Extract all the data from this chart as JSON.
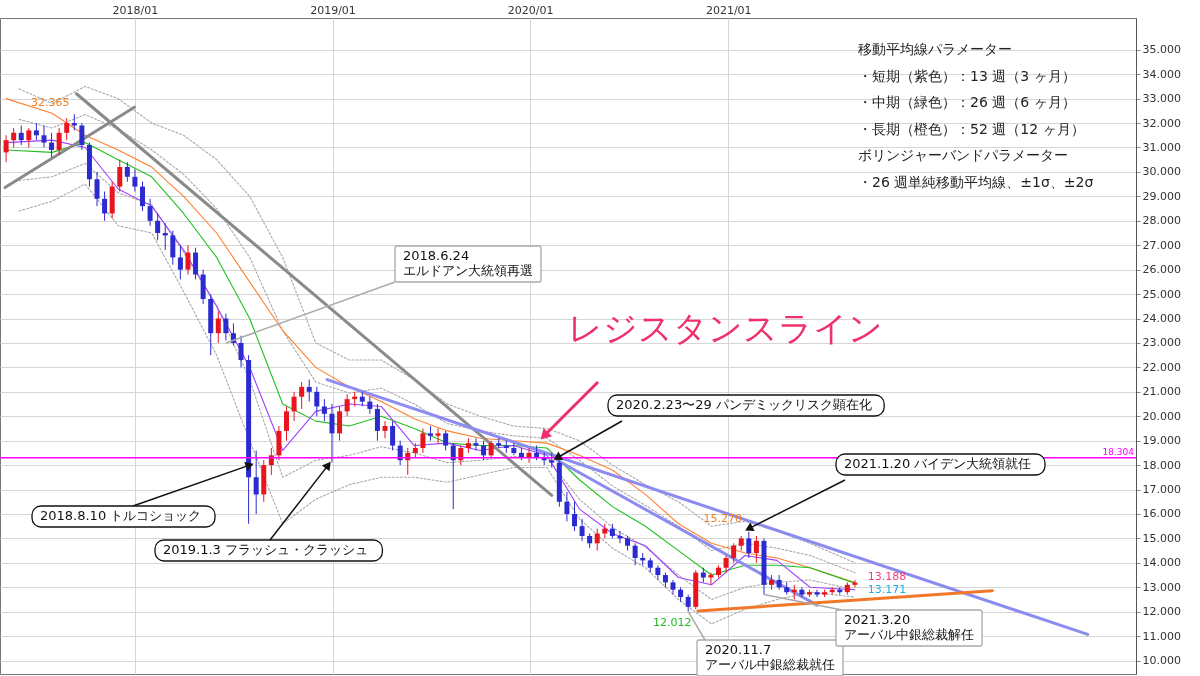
{
  "chart_data": {
    "type": "candlestick",
    "xlim": [
      "2017-05-06",
      "2023-01-15"
    ],
    "ylim": [
      9.45,
      36.3
    ],
    "xticks": [
      {
        "value": "2018-01-01",
        "label": "2018/01"
      },
      {
        "value": "2019-01-01",
        "label": "2019/01"
      },
      {
        "value": "2020-01-01",
        "label": "2020/01"
      },
      {
        "value": "2021-01-01",
        "label": "2021/01"
      }
    ],
    "yticks": [
      {
        "value": 10,
        "label": "10.000"
      },
      {
        "value": 11,
        "label": "11.000"
      },
      {
        "value": 12,
        "label": "12.000"
      },
      {
        "value": 13,
        "label": "13.000"
      },
      {
        "value": 14,
        "label": "14.000"
      },
      {
        "value": 15,
        "label": "15.000"
      },
      {
        "value": 16,
        "label": "16.000"
      },
      {
        "value": 17,
        "label": "17.000"
      },
      {
        "value": 18,
        "label": "18.000"
      },
      {
        "value": 19,
        "label": "19.000"
      },
      {
        "value": 20,
        "label": "20.000"
      },
      {
        "value": 21,
        "label": "21.000"
      },
      {
        "value": 22,
        "label": "22.000"
      },
      {
        "value": 23,
        "label": "23.000"
      },
      {
        "value": 24,
        "label": "24.000"
      },
      {
        "value": 25,
        "label": "25.000"
      },
      {
        "value": 26,
        "label": "26.000"
      },
      {
        "value": 27,
        "label": "27.000"
      },
      {
        "value": 28,
        "label": "28.000"
      },
      {
        "value": 29,
        "label": "29.000"
      },
      {
        "value": 30,
        "label": "30.000"
      },
      {
        "value": 31,
        "label": "31.000"
      },
      {
        "value": 32,
        "label": "32.000"
      },
      {
        "value": 33,
        "label": "33.000"
      },
      {
        "value": 34,
        "label": "34.000"
      },
      {
        "value": 35,
        "label": "35.000"
      }
    ],
    "grid": true,
    "series": [
      {
        "type": "line",
        "color": "#a9a9a9",
        "line_style": "dotted",
        "x": [
          "2017-06-01",
          "2017-08-01",
          "2017-10-01",
          "2017-12-01",
          "2018-02-01",
          "2018-04-01",
          "2018-06-01",
          "2018-08-01",
          "2018-10-01",
          "2018-12-01",
          "2019-02-01",
          "2019-04-01",
          "2019-06-01",
          "2019-08-01",
          "2019-10-01",
          "2019-12-01",
          "2020-02-01",
          "2020-04-01",
          "2020-06-01",
          "2020-08-01",
          "2020-10-01",
          "2020-12-01",
          "2021-02-01",
          "2021-04-01",
          "2021-06-01",
          "2021-08-23"
        ],
        "values": [
          33.4,
          32.8,
          33.5,
          33.0,
          32.0,
          31.5,
          30.5,
          29.0,
          26.5,
          23.0,
          22.3,
          22.3,
          21.5,
          20.5,
          20.0,
          19.6,
          19.5,
          19.0,
          18.0,
          17.2,
          16.5,
          15.5,
          15.7,
          15.3,
          14.8,
          14.0
        ]
      },
      {
        "type": "line",
        "color": "#a9a9a9",
        "line_style": "dotted",
        "x": [
          "2017-06-01",
          "2017-08-01",
          "2017-10-01",
          "2017-12-01",
          "2018-02-01",
          "2018-04-01",
          "2018-06-01",
          "2018-08-01",
          "2018-10-01",
          "2018-12-01",
          "2019-02-01",
          "2019-04-01",
          "2019-06-01",
          "2019-08-01",
          "2019-10-01",
          "2019-12-01",
          "2020-02-01",
          "2020-04-01",
          "2020-06-01",
          "2020-08-01",
          "2020-10-01",
          "2020-12-01",
          "2021-02-01",
          "2021-04-01",
          "2021-06-01",
          "2021-08-23"
        ],
        "values": [
          32.15,
          31.8,
          32.35,
          31.75,
          30.9,
          29.9,
          28.5,
          26.5,
          23.5,
          21.4,
          20.95,
          21.15,
          20.5,
          19.7,
          19.4,
          19.2,
          19.1,
          18.2,
          17.15,
          16.35,
          15.5,
          14.5,
          14.8,
          14.6,
          14.3,
          13.6
        ]
      },
      {
        "type": "line",
        "color": "#a9a9a9",
        "line_style": "dotted",
        "x": [
          "2017-06-01",
          "2017-08-01",
          "2017-10-01",
          "2017-12-01",
          "2018-02-01",
          "2018-04-01",
          "2018-06-01",
          "2018-08-01",
          "2018-10-01",
          "2018-12-01",
          "2019-02-01",
          "2019-04-01",
          "2019-06-01",
          "2019-08-01",
          "2019-10-01",
          "2019-12-01",
          "2020-02-01",
          "2020-04-01",
          "2020-06-01",
          "2020-08-01",
          "2020-10-01",
          "2020-12-01",
          "2021-02-01",
          "2021-04-01",
          "2021-06-01",
          "2021-08-23"
        ],
        "values": [
          29.65,
          29.8,
          30.35,
          29.15,
          28.65,
          26.7,
          24.5,
          21.5,
          17.5,
          18.2,
          18.4,
          18.75,
          18.5,
          18.1,
          18.2,
          18.35,
          18.3,
          16.6,
          15.45,
          14.65,
          13.5,
          12.5,
          13.0,
          13.2,
          13.3,
          12.9
        ]
      },
      {
        "type": "line",
        "color": "#a9a9a9",
        "line_style": "dotted",
        "x": [
          "2017-06-01",
          "2017-08-01",
          "2017-10-01",
          "2017-12-01",
          "2018-02-01",
          "2018-04-01",
          "2018-06-01",
          "2018-08-01",
          "2018-10-01",
          "2018-12-01",
          "2019-02-01",
          "2019-04-01",
          "2019-06-01",
          "2019-08-01",
          "2019-10-01",
          "2019-12-01",
          "2020-02-01",
          "2020-04-01",
          "2020-06-01",
          "2020-08-01",
          "2020-10-01",
          "2020-12-01",
          "2021-02-01",
          "2021-04-01",
          "2021-06-01",
          "2021-08-23"
        ],
        "values": [
          28.4,
          28.8,
          29.5,
          27.8,
          27.5,
          25.1,
          22.5,
          19.0,
          15.6,
          16.6,
          17.2,
          17.5,
          17.5,
          17.3,
          17.6,
          17.9,
          17.9,
          15.8,
          14.6,
          13.8,
          12.5,
          11.5,
          12.1,
          12.5,
          12.8,
          12.6
        ]
      },
      {
        "type": "line",
        "color": "#ff8030",
        "line_style": "solid",
        "x": [
          "2017-05-08",
          "2017-08-01",
          "2017-10-01",
          "2017-12-01",
          "2018-02-01",
          "2018-04-01",
          "2018-06-01",
          "2018-08-01",
          "2018-10-01",
          "2018-12-01",
          "2019-02-01",
          "2019-04-01",
          "2019-06-01",
          "2019-08-01",
          "2019-10-01",
          "2019-12-01",
          "2020-02-01",
          "2020-04-01",
          "2020-06-01",
          "2020-08-01",
          "2020-10-01",
          "2020-12-01",
          "2021-02-01",
          "2021-04-01",
          "2021-06-01",
          "2021-08-23"
        ],
        "values": [
          33.0,
          32.4,
          31.5,
          30.9,
          30.2,
          29.0,
          27.5,
          25.5,
          23.5,
          22.0,
          21.2,
          20.6,
          19.9,
          19.4,
          19.1,
          19.0,
          18.9,
          18.4,
          17.8,
          16.8,
          15.6,
          14.8,
          14.4,
          14.2,
          13.8,
          13.19
        ]
      },
      {
        "type": "line",
        "color": "#22c022",
        "line_style": "solid",
        "x": [
          "2017-05-08",
          "2017-08-01",
          "2017-10-01",
          "2017-12-01",
          "2018-02-01",
          "2018-04-01",
          "2018-06-01",
          "2018-08-01",
          "2018-10-01",
          "2018-12-01",
          "2019-02-01",
          "2019-04-01",
          "2019-06-01",
          "2019-08-01",
          "2019-10-01",
          "2019-12-01",
          "2020-02-01",
          "2020-04-01",
          "2020-06-01",
          "2020-08-01",
          "2020-10-01",
          "2020-12-01",
          "2021-02-01",
          "2021-04-01",
          "2021-06-01",
          "2021-08-23"
        ],
        "values": [
          30.9,
          30.8,
          31.2,
          30.5,
          29.8,
          28.3,
          26.5,
          24.0,
          20.5,
          19.8,
          19.6,
          20.0,
          19.5,
          18.9,
          18.8,
          18.8,
          18.7,
          17.4,
          16.3,
          15.5,
          14.5,
          13.5,
          13.9,
          13.9,
          13.8,
          13.17
        ]
      },
      {
        "type": "line",
        "color": "#a040ff",
        "line_style": "solid",
        "x": [
          "2017-05-08",
          "2017-08-01",
          "2017-10-01",
          "2017-12-01",
          "2018-02-01",
          "2018-04-01",
          "2018-06-01",
          "2018-08-01",
          "2018-10-01",
          "2018-12-01",
          "2019-02-01",
          "2019-04-01",
          "2019-06-01",
          "2019-08-01",
          "2019-10-01",
          "2019-12-01",
          "2020-02-01",
          "2020-04-01",
          "2020-06-01",
          "2020-08-01",
          "2020-10-01",
          "2020-12-01",
          "2021-02-01",
          "2021-04-01",
          "2021-06-01",
          "2021-08-23"
        ],
        "values": [
          31.2,
          31.3,
          31.0,
          29.3,
          28.6,
          26.8,
          24.5,
          22.0,
          18.6,
          20.2,
          20.5,
          20.4,
          18.8,
          18.9,
          18.6,
          18.8,
          18.4,
          16.2,
          15.2,
          14.7,
          13.4,
          13.1,
          14.3,
          14.1,
          13.0,
          12.9
        ]
      },
      {
        "type": "line",
        "color": "#8a8a8a",
        "line_style": "solid",
        "x": [
          "2017-05-06",
          "2017-12-31"
        ],
        "values": [
          29.36,
          32.65
        ]
      },
      {
        "type": "line",
        "color": "#8a8a8a",
        "line_style": "solid",
        "x": [
          "2017-09-15",
          "2020-02-10"
        ],
        "values": [
          33.2,
          16.76
        ]
      },
      {
        "type": "line",
        "color": "#8c8cf0",
        "line_style": "solid",
        "x": [
          "2018-12-22",
          "2022-10-27"
        ],
        "values": [
          21.5,
          11.07
        ]
      },
      {
        "type": "line",
        "color": "#8c8cf0",
        "line_style": "solid",
        "x": [
          "2020-02-20",
          "2021-06-14"
        ],
        "values": [
          18.2,
          12.27
        ]
      },
      {
        "type": "line",
        "color": "#f07828",
        "line_style": "solid",
        "x": [
          "2020-11-06",
          "2022-05-04"
        ],
        "values": [
          12.03,
          12.86
        ]
      },
      {
        "color": "#e8141e",
        "x": [
          "2017-05-08",
          "2017-05-22",
          "2017-06-19",
          "2017-08-14",
          "2017-08-28",
          "2017-11-20",
          "2017-12-04",
          "2018-04-09",
          "2018-06-04",
          "2018-08-27",
          "2018-09-10",
          "2018-09-24",
          "2018-10-08",
          "2018-10-22",
          "2018-11-05",
          "2019-01-14",
          "2019-01-28",
          "2019-02-11",
          "2019-04-08",
          "2019-05-20",
          "2019-06-03",
          "2019-06-17",
          "2019-07-15",
          "2019-08-26",
          "2019-09-09",
          "2019-10-21",
          "2019-12-30",
          "2020-05-04",
          "2020-05-18",
          "2020-11-02",
          "2020-11-30",
          "2020-12-14",
          "2020-12-28",
          "2021-01-11",
          "2021-01-25",
          "2021-02-22",
          "2021-03-22",
          "2021-05-03",
          "2021-05-31",
          "2021-06-28",
          "2021-07-12",
          "2021-08-09",
          "2021-08-23"
        ],
        "ohlc": [
          [
            30.8,
            31.5,
            30.4,
            31.3
          ],
          [
            31.3,
            31.8,
            31.0,
            31.6
          ],
          [
            31.3,
            31.8,
            31.0,
            31.7
          ],
          [
            30.9,
            31.8,
            30.7,
            31.6
          ],
          [
            31.6,
            32.2,
            31.3,
            32.0
          ],
          [
            28.3,
            29.6,
            28.1,
            29.4
          ],
          [
            29.4,
            30.5,
            29.2,
            30.2
          ],
          [
            26.0,
            27.0,
            25.8,
            26.7
          ],
          [
            23.4,
            24.3,
            23.0,
            24.0
          ],
          [
            16.8,
            18.2,
            16.5,
            18.0
          ],
          [
            18.0,
            18.7,
            17.6,
            18.4
          ],
          [
            18.4,
            19.6,
            18.2,
            19.4
          ],
          [
            19.4,
            20.4,
            19.0,
            20.2
          ],
          [
            20.2,
            21.0,
            19.8,
            20.8
          ],
          [
            20.8,
            21.4,
            20.3,
            21.2
          ],
          [
            19.3,
            20.4,
            19.0,
            20.2
          ],
          [
            20.2,
            20.9,
            20.0,
            20.7
          ],
          [
            20.7,
            21.0,
            20.4,
            20.8
          ],
          [
            19.4,
            19.8,
            19.1,
            19.6
          ],
          [
            18.2,
            18.7,
            17.6,
            18.5
          ],
          [
            18.5,
            18.9,
            18.3,
            18.7
          ],
          [
            18.7,
            19.5,
            18.5,
            19.3
          ],
          [
            19.2,
            19.5,
            18.9,
            19.3
          ],
          [
            18.2,
            18.8,
            18.0,
            18.7
          ],
          [
            18.7,
            19.1,
            18.5,
            18.9
          ],
          [
            18.4,
            19.0,
            18.3,
            18.9
          ],
          [
            18.3,
            18.7,
            18.1,
            18.5
          ],
          [
            14.8,
            15.4,
            14.5,
            15.2
          ],
          [
            15.2,
            15.6,
            15.0,
            15.4
          ],
          [
            12.2,
            13.7,
            12.1,
            13.6
          ],
          [
            13.4,
            13.6,
            13.1,
            13.5
          ],
          [
            13.5,
            13.9,
            13.4,
            13.8
          ],
          [
            13.8,
            14.3,
            13.6,
            14.2
          ],
          [
            14.2,
            14.8,
            14.0,
            14.7
          ],
          [
            14.7,
            15.1,
            14.5,
            15.0
          ],
          [
            14.4,
            15.1,
            14.0,
            14.9
          ],
          [
            13.1,
            13.5,
            12.9,
            13.3
          ],
          [
            12.8,
            13.1,
            12.5,
            12.9
          ],
          [
            12.7,
            12.9,
            12.6,
            12.8
          ],
          [
            12.7,
            12.9,
            12.6,
            12.8
          ],
          [
            12.8,
            13.0,
            12.7,
            12.9
          ],
          [
            12.8,
            13.2,
            12.7,
            13.1
          ],
          [
            13.1,
            13.3,
            13.0,
            13.188
          ]
        ]
      },
      {
        "color": "#2b2bd0",
        "x": [
          "2017-06-05",
          "2017-07-03",
          "2017-07-17",
          "2017-07-31",
          "2017-09-11",
          "2017-09-25",
          "2017-10-09",
          "2017-10-23",
          "2017-11-06",
          "2017-12-18",
          "2018-01-01",
          "2018-01-15",
          "2018-01-29",
          "2018-02-12",
          "2018-02-26",
          "2018-03-12",
          "2018-03-26",
          "2018-04-23",
          "2018-05-07",
          "2018-05-21",
          "2018-06-18",
          "2018-07-02",
          "2018-07-16",
          "2018-07-30",
          "2018-08-13",
          "2018-11-19",
          "2018-12-03",
          "2018-12-17",
          "2018-12-31",
          "2019-02-25",
          "2019-03-11",
          "2019-03-25",
          "2019-04-22",
          "2019-05-06",
          "2019-07-01",
          "2019-07-29",
          "2019-08-12",
          "2019-09-23",
          "2019-10-07",
          "2019-11-04",
          "2019-11-18",
          "2019-12-02",
          "2019-12-16",
          "2020-01-13",
          "2020-01-27",
          "2020-02-10",
          "2020-02-24",
          "2020-03-09",
          "2020-03-23",
          "2020-04-06",
          "2020-04-20",
          "2020-06-01",
          "2020-06-15",
          "2020-06-29",
          "2020-07-13",
          "2020-07-27",
          "2020-08-10",
          "2020-08-24",
          "2020-09-07",
          "2020-09-21",
          "2020-10-05",
          "2020-10-19",
          "2020-11-16",
          "2021-02-08",
          "2021-03-08",
          "2021-04-05",
          "2021-04-19",
          "2021-05-17",
          "2021-06-14",
          "2021-07-26"
        ],
        "ohlc": [
          [
            31.6,
            31.9,
            31.1,
            31.3
          ],
          [
            31.7,
            32.0,
            31.3,
            31.5
          ],
          [
            31.5,
            31.9,
            31.0,
            31.2
          ],
          [
            31.2,
            31.6,
            30.6,
            30.9
          ],
          [
            32.0,
            32.365,
            31.7,
            31.9
          ],
          [
            31.9,
            32.0,
            30.9,
            31.1
          ],
          [
            31.1,
            31.2,
            29.4,
            29.7
          ],
          [
            29.7,
            30.0,
            28.6,
            28.9
          ],
          [
            28.9,
            29.2,
            28.0,
            28.3
          ],
          [
            30.2,
            30.4,
            29.6,
            29.8
          ],
          [
            29.8,
            30.1,
            29.2,
            29.4
          ],
          [
            29.4,
            29.6,
            28.4,
            28.6
          ],
          [
            28.6,
            28.9,
            27.8,
            28.0
          ],
          [
            28.0,
            28.3,
            27.2,
            27.5
          ],
          [
            27.5,
            27.9,
            26.8,
            27.4
          ],
          [
            27.4,
            27.6,
            26.2,
            26.5
          ],
          [
            26.5,
            27.0,
            25.6,
            26.0
          ],
          [
            26.7,
            26.9,
            25.6,
            25.8
          ],
          [
            25.8,
            26.0,
            24.6,
            24.8
          ],
          [
            24.8,
            25.0,
            22.5,
            23.4
          ],
          [
            24.0,
            24.2,
            23.1,
            23.4
          ],
          [
            23.4,
            23.8,
            22.9,
            23.0
          ],
          [
            23.0,
            23.3,
            22.0,
            22.3
          ],
          [
            22.3,
            22.5,
            15.6,
            17.5
          ],
          [
            17.5,
            18.6,
            16.0,
            16.8
          ],
          [
            21.2,
            21.5,
            20.6,
            21.0
          ],
          [
            21.0,
            21.2,
            20.0,
            20.4
          ],
          [
            20.4,
            20.7,
            19.8,
            20.1
          ],
          [
            20.1,
            20.5,
            18.1,
            19.3
          ],
          [
            20.8,
            21.0,
            20.4,
            20.6
          ],
          [
            20.6,
            20.8,
            20.1,
            20.3
          ],
          [
            20.3,
            20.5,
            19.0,
            19.4
          ],
          [
            19.6,
            19.8,
            18.6,
            18.8
          ],
          [
            18.8,
            19.0,
            18.0,
            18.2
          ],
          [
            19.3,
            19.6,
            19.0,
            19.2
          ],
          [
            19.3,
            19.4,
            18.6,
            18.8
          ],
          [
            18.8,
            18.9,
            16.2,
            18.2
          ],
          [
            18.9,
            19.1,
            18.6,
            18.8
          ],
          [
            18.8,
            19.0,
            18.2,
            18.4
          ],
          [
            18.9,
            19.1,
            18.7,
            18.8
          ],
          [
            18.8,
            19.0,
            18.5,
            18.7
          ],
          [
            18.7,
            18.9,
            18.4,
            18.5
          ],
          [
            18.5,
            18.7,
            18.2,
            18.3
          ],
          [
            18.5,
            18.8,
            18.2,
            18.3
          ],
          [
            18.3,
            18.5,
            18.0,
            18.2
          ],
          [
            18.2,
            18.5,
            17.9,
            18.1
          ],
          [
            18.1,
            18.2,
            16.3,
            16.5
          ],
          [
            16.5,
            16.9,
            15.7,
            16.0
          ],
          [
            16.0,
            16.5,
            15.3,
            15.5
          ],
          [
            15.5,
            15.8,
            14.9,
            15.1
          ],
          [
            15.1,
            15.2,
            14.6,
            14.8
          ],
          [
            15.4,
            15.6,
            15.0,
            15.1
          ],
          [
            15.1,
            15.3,
            14.8,
            15.0
          ],
          [
            15.0,
            15.1,
            14.5,
            14.7
          ],
          [
            14.7,
            14.8,
            13.9,
            14.2
          ],
          [
            14.2,
            14.4,
            13.9,
            14.1
          ],
          [
            14.1,
            14.2,
            13.6,
            13.8
          ],
          [
            13.8,
            13.9,
            13.3,
            13.5
          ],
          [
            13.5,
            13.6,
            13.0,
            13.2
          ],
          [
            13.2,
            13.3,
            12.7,
            12.9
          ],
          [
            12.9,
            13.0,
            12.4,
            12.6
          ],
          [
            12.6,
            12.7,
            12.012,
            12.2
          ],
          [
            13.6,
            13.8,
            13.2,
            13.4
          ],
          [
            15.0,
            15.27,
            14.2,
            14.4
          ],
          [
            14.9,
            15.0,
            12.7,
            13.1
          ],
          [
            13.3,
            13.5,
            12.9,
            13.0
          ],
          [
            13.0,
            13.2,
            12.7,
            12.8
          ],
          [
            12.9,
            13.0,
            12.6,
            12.7
          ],
          [
            12.8,
            12.9,
            12.6,
            12.7
          ],
          [
            12.9,
            13.0,
            12.7,
            12.8
          ]
        ]
      }
    ],
    "ref_lines": [
      {
        "axis": "y",
        "value": 18.304,
        "label": "18.304",
        "color": "#ff00ff"
      }
    ],
    "annotations": [
      "移動平均線パラメーター",
      "・短期（紫色）：13 週（3 ヶ月）",
      "・中期（緑色）：26 週（6 ヶ月）",
      "・長期（橙色）：52 週（12 ヶ月）",
      "ボリンジャーバンドパラメーター",
      "・26 週単純移動平均線、±1σ、±2σ",
      {
        "text": "レジスタンスライン",
        "x": "2020-01-27",
        "y": 19.2
      },
      {
        "text": "32.365",
        "x": "2017-09-11",
        "y": 32.365
      },
      {
        "text": "15.270",
        "x": "2021-02-08",
        "y": 15.27
      },
      {
        "text": "12.012",
        "x": "2020-10-19",
        "y": 12.012
      },
      {
        "text": "13.188",
        "x": "2021-08-23",
        "y": 13.188
      },
      {
        "text": "13.171",
        "x": "2021-08-23",
        "y": 13.171
      },
      {
        "text": "2018.6.24\nエルドアン大統領再選",
        "x": "2018-06-18",
        "y": 23.0
      },
      {
        "text": "2018.8.10 トルコショック",
        "x": "2018-08-01",
        "y": 18.0
      },
      {
        "text": "2019.1.3 フラッシュ・クラッシュ",
        "x": "2018-12-24",
        "y": 18.0
      },
      {
        "text": "2020.2.23〜29 パンデミックリスク顕在化",
        "x": "2020-02-20",
        "y": 18.3
      },
      {
        "text": "2021.1.20 バイデン大統領就任",
        "x": "2021-02-08",
        "y": 15.4
      },
      {
        "text": "2020.11.7\nアーバル中銀総裁就任",
        "x": "2020-10-19",
        "y": 12.012
      },
      {
        "text": "2021.3.20\nアーバル中銀総裁解任",
        "x": "2021-03-08",
        "y": 12.7
      }
    ]
  }
}
